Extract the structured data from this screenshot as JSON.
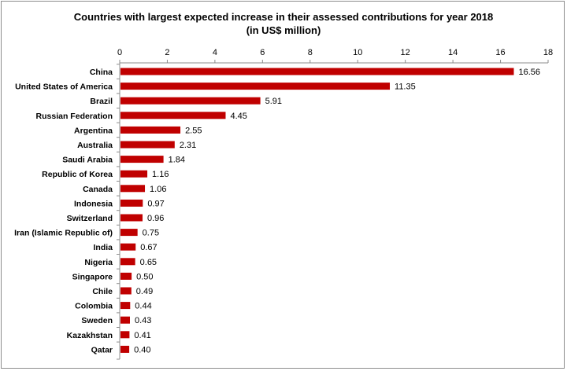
{
  "chart_data": {
    "type": "bar",
    "orientation": "horizontal",
    "title": "Countries with largest expected increase in their assessed contributions  for year 2018",
    "subtitle": "(in US$ million)",
    "categories": [
      "China",
      "United States of America",
      "Brazil",
      "Russian Federation",
      "Argentina",
      "Australia",
      "Saudi Arabia",
      "Republic of Korea",
      "Canada",
      "Indonesia",
      "Switzerland",
      "Iran (Islamic Republic of)",
      "India",
      "Nigeria",
      "Singapore",
      "Chile",
      "Colombia",
      "Sweden",
      "Kazakhstan",
      "Qatar"
    ],
    "values": [
      16.56,
      11.35,
      5.91,
      4.45,
      2.55,
      2.31,
      1.84,
      1.16,
      1.06,
      0.97,
      0.96,
      0.75,
      0.67,
      0.65,
      0.5,
      0.49,
      0.44,
      0.43,
      0.41,
      0.4
    ],
    "value_labels": [
      "16.56",
      "11.35",
      "5.91",
      "4.45",
      "2.55",
      "2.31",
      "1.84",
      "1.16",
      "1.06",
      "0.97",
      "0.96",
      "0.75",
      "0.67",
      "0.65",
      "0.50",
      "0.49",
      "0.44",
      "0.43",
      "0.41",
      "0.40"
    ],
    "xlim": [
      0,
      18
    ],
    "xticks": [
      0,
      2,
      4,
      6,
      8,
      10,
      12,
      14,
      16,
      18
    ],
    "x_axis_position": "top",
    "grid": false,
    "legend": "none",
    "bar_color": "#c00000"
  }
}
